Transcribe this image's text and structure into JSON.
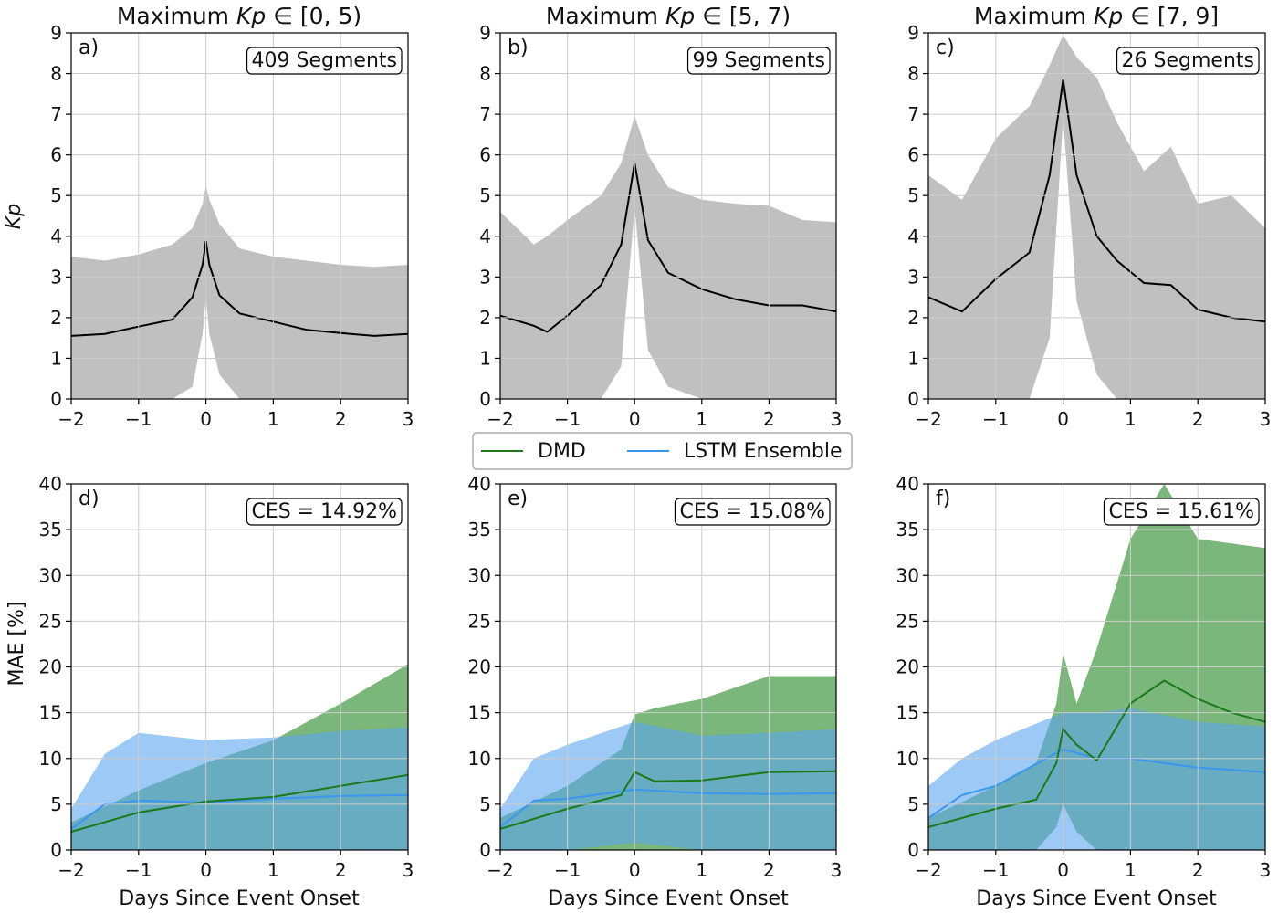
{
  "figure": {
    "xlabel": "Days Since Event Onset",
    "ylabel_top": "Kp",
    "ylabel_bottom": "MAE [%]",
    "legend": [
      {
        "label": "DMD",
        "color": "#1a7a1a"
      },
      {
        "label": "LSTM Ensemble",
        "color": "#3a96ee"
      }
    ],
    "colors": {
      "kp_band": "#c0c0c0",
      "kp_line": "#000000",
      "dmd_band": "#4f9f4f",
      "lstm_band": "#5aa5ee",
      "dmd_line": "#1a7a1a",
      "lstm_line": "#3a96ee",
      "grid": "#cccccc"
    }
  },
  "chart_data": [
    {
      "type": "area",
      "panel": "a)",
      "title_prefix": "Maximum ",
      "title_var": "Kp",
      "title_suffix": " ∈ [0, 5)",
      "annotation": "409 Segments",
      "xlim": [
        -2,
        3
      ],
      "ylim": [
        0,
        9
      ],
      "xticks": [
        "−2",
        "−1",
        "0",
        "1",
        "2",
        "3"
      ],
      "yticks": [
        "0",
        "1",
        "2",
        "3",
        "4",
        "5",
        "6",
        "7",
        "8",
        "9"
      ],
      "grid": true,
      "x": [
        -2,
        -1.5,
        -1,
        -0.5,
        -0.2,
        -0.05,
        0,
        0.05,
        0.2,
        0.5,
        1,
        1.5,
        2,
        2.5,
        3
      ],
      "mean": [
        1.55,
        1.6,
        1.78,
        1.95,
        2.5,
        3.3,
        3.88,
        3.3,
        2.55,
        2.1,
        1.9,
        1.7,
        1.62,
        1.55,
        1.6
      ],
      "upper": [
        3.5,
        3.4,
        3.55,
        3.8,
        4.2,
        4.8,
        5.25,
        4.9,
        4.3,
        3.7,
        3.5,
        3.4,
        3.3,
        3.25,
        3.3
      ],
      "lower": [
        0,
        0,
        0,
        0,
        0.3,
        1.6,
        2.5,
        1.6,
        0.6,
        0,
        0,
        0,
        0,
        0,
        0
      ]
    },
    {
      "type": "area",
      "panel": "b)",
      "title_prefix": "Maximum ",
      "title_var": "Kp",
      "title_suffix": " ∈ [5, 7)",
      "annotation": "99 Segments",
      "xlim": [
        -2,
        3
      ],
      "ylim": [
        0,
        9
      ],
      "xticks": [
        "−2",
        "−1",
        "0",
        "1",
        "2",
        "3"
      ],
      "yticks": [
        "0",
        "1",
        "2",
        "3",
        "4",
        "5",
        "6",
        "7",
        "8",
        "9"
      ],
      "grid": true,
      "x": [
        -2,
        -1.5,
        -1.3,
        -1,
        -0.5,
        -0.2,
        0,
        0.2,
        0.5,
        1,
        1.5,
        2,
        2.5,
        3
      ],
      "mean": [
        2.05,
        1.8,
        1.65,
        2.05,
        2.8,
        3.8,
        5.8,
        3.9,
        3.1,
        2.7,
        2.45,
        2.3,
        2.3,
        2.15
      ],
      "upper": [
        4.6,
        3.8,
        4.0,
        4.4,
        5.0,
        5.8,
        6.95,
        6.0,
        5.2,
        4.9,
        4.8,
        4.75,
        4.4,
        4.35
      ],
      "lower": [
        0,
        0,
        0,
        0,
        0,
        0.8,
        4.7,
        1.2,
        0.3,
        0,
        0,
        0,
        0,
        0
      ]
    },
    {
      "type": "area",
      "panel": "c)",
      "title_prefix": "Maximum ",
      "title_var": "Kp",
      "title_suffix": " ∈ [7, 9]",
      "annotation": "26 Segments",
      "xlim": [
        -2,
        3
      ],
      "ylim": [
        0,
        9
      ],
      "xticks": [
        "−2",
        "−1",
        "0",
        "1",
        "2",
        "3"
      ],
      "yticks": [
        "0",
        "1",
        "2",
        "3",
        "4",
        "5",
        "6",
        "7",
        "8",
        "9"
      ],
      "grid": true,
      "x": [
        -2,
        -1.5,
        -1,
        -0.5,
        -0.2,
        0,
        0.2,
        0.5,
        0.8,
        1.2,
        1.6,
        2,
        2.5,
        3
      ],
      "mean": [
        2.5,
        2.15,
        2.95,
        3.6,
        5.5,
        7.85,
        5.5,
        4.0,
        3.4,
        2.85,
        2.8,
        2.2,
        2.0,
        1.9
      ],
      "upper": [
        5.5,
        4.9,
        6.4,
        7.2,
        8.2,
        8.95,
        8.4,
        7.9,
        6.8,
        5.6,
        6.2,
        4.8,
        5.0,
        4.2
      ],
      "lower": [
        0,
        0,
        0,
        0,
        1.5,
        6.9,
        2.4,
        0.6,
        0,
        0,
        0,
        0,
        0,
        0
      ]
    },
    {
      "type": "area",
      "panel": "d)",
      "annotation": "CES = 14.92%",
      "xlim": [
        -2,
        3
      ],
      "ylim": [
        0,
        40
      ],
      "xticks": [
        "−2",
        "−1",
        "0",
        "1",
        "2",
        "3"
      ],
      "yticks": [
        "0",
        "5",
        "10",
        "15",
        "20",
        "25",
        "30",
        "35",
        "40"
      ],
      "grid": true,
      "series": [
        {
          "name": "DMD",
          "x": [
            -2,
            -1,
            0,
            1,
            2,
            3
          ],
          "mean": [
            2.0,
            4.1,
            5.3,
            5.8,
            7.0,
            8.2
          ],
          "upper": [
            3.0,
            6.5,
            9.5,
            12.0,
            16.0,
            20.3
          ],
          "lower": [
            0,
            0,
            0,
            0,
            0,
            0
          ]
        },
        {
          "name": "LSTM Ensemble",
          "x": [
            -2,
            -1.5,
            -1,
            0,
            1,
            2,
            3
          ],
          "mean": [
            2.3,
            5.0,
            5.4,
            5.2,
            5.6,
            5.9,
            6.0
          ],
          "upper": [
            4.5,
            10.5,
            12.8,
            12.0,
            12.3,
            13.0,
            13.4
          ],
          "lower": [
            0,
            0,
            0,
            0,
            0,
            0,
            0
          ]
        }
      ]
    },
    {
      "type": "area",
      "panel": "e)",
      "annotation": "CES = 15.08%",
      "xlim": [
        -2,
        3
      ],
      "ylim": [
        0,
        40
      ],
      "xticks": [
        "−2",
        "−1",
        "0",
        "1",
        "2",
        "3"
      ],
      "yticks": [
        "0",
        "5",
        "10",
        "15",
        "20",
        "25",
        "30",
        "35",
        "40"
      ],
      "grid": true,
      "series": [
        {
          "name": "DMD",
          "x": [
            -2,
            -1,
            -0.2,
            0,
            0.3,
            1,
            2,
            3
          ],
          "mean": [
            2.3,
            4.5,
            6.0,
            8.5,
            7.5,
            7.6,
            8.5,
            8.6
          ],
          "upper": [
            3.5,
            7.0,
            11.0,
            14.8,
            15.5,
            16.5,
            19.0,
            19.0
          ],
          "lower": [
            0,
            0,
            0,
            0,
            0,
            0,
            0,
            0
          ]
        },
        {
          "name": "LSTM Ensemble",
          "x": [
            -2,
            -1.5,
            -1,
            0,
            1,
            2,
            3
          ],
          "mean": [
            2.5,
            5.4,
            5.6,
            6.6,
            6.2,
            6.1,
            6.2
          ],
          "upper": [
            4.5,
            10.0,
            11.5,
            14.0,
            12.5,
            12.8,
            13.2
          ],
          "lower": [
            0,
            0,
            0,
            0.8,
            0,
            0,
            0
          ]
        }
      ]
    },
    {
      "type": "area",
      "panel": "f)",
      "annotation": "CES = 15.61%",
      "xlim": [
        -2,
        3
      ],
      "ylim": [
        0,
        40
      ],
      "xticks": [
        "−2",
        "−1",
        "0",
        "1",
        "2",
        "3"
      ],
      "yticks": [
        "0",
        "5",
        "10",
        "15",
        "20",
        "25",
        "30",
        "35",
        "40"
      ],
      "grid": true,
      "series": [
        {
          "name": "DMD",
          "x": [
            -2,
            -1,
            -0.4,
            -0.1,
            0,
            0.2,
            0.5,
            1,
            1.5,
            2,
            2.5,
            3
          ],
          "mean": [
            2.5,
            4.5,
            5.5,
            9.5,
            13.2,
            11.5,
            9.8,
            16.0,
            18.5,
            16.5,
            15.0,
            14.0
          ],
          "upper": [
            3.5,
            7.0,
            9.5,
            16.0,
            21.5,
            16.0,
            22.0,
            34.0,
            40.0,
            34.0,
            33.5,
            33.0
          ],
          "lower": [
            0,
            0,
            0,
            2.5,
            5.0,
            2.0,
            0,
            0,
            0,
            0,
            0,
            0
          ]
        },
        {
          "name": "LSTM Ensemble",
          "x": [
            -2,
            -1.5,
            -1,
            0,
            0.5,
            1,
            2,
            3
          ],
          "mean": [
            3.5,
            6.0,
            7.0,
            11.0,
            10.0,
            10.0,
            9.0,
            8.5
          ],
          "upper": [
            7.0,
            10.0,
            12.0,
            15.0,
            15.0,
            15.5,
            14.0,
            13.5
          ],
          "lower": [
            0,
            0,
            0,
            0,
            0,
            0,
            0,
            0
          ]
        }
      ]
    }
  ]
}
